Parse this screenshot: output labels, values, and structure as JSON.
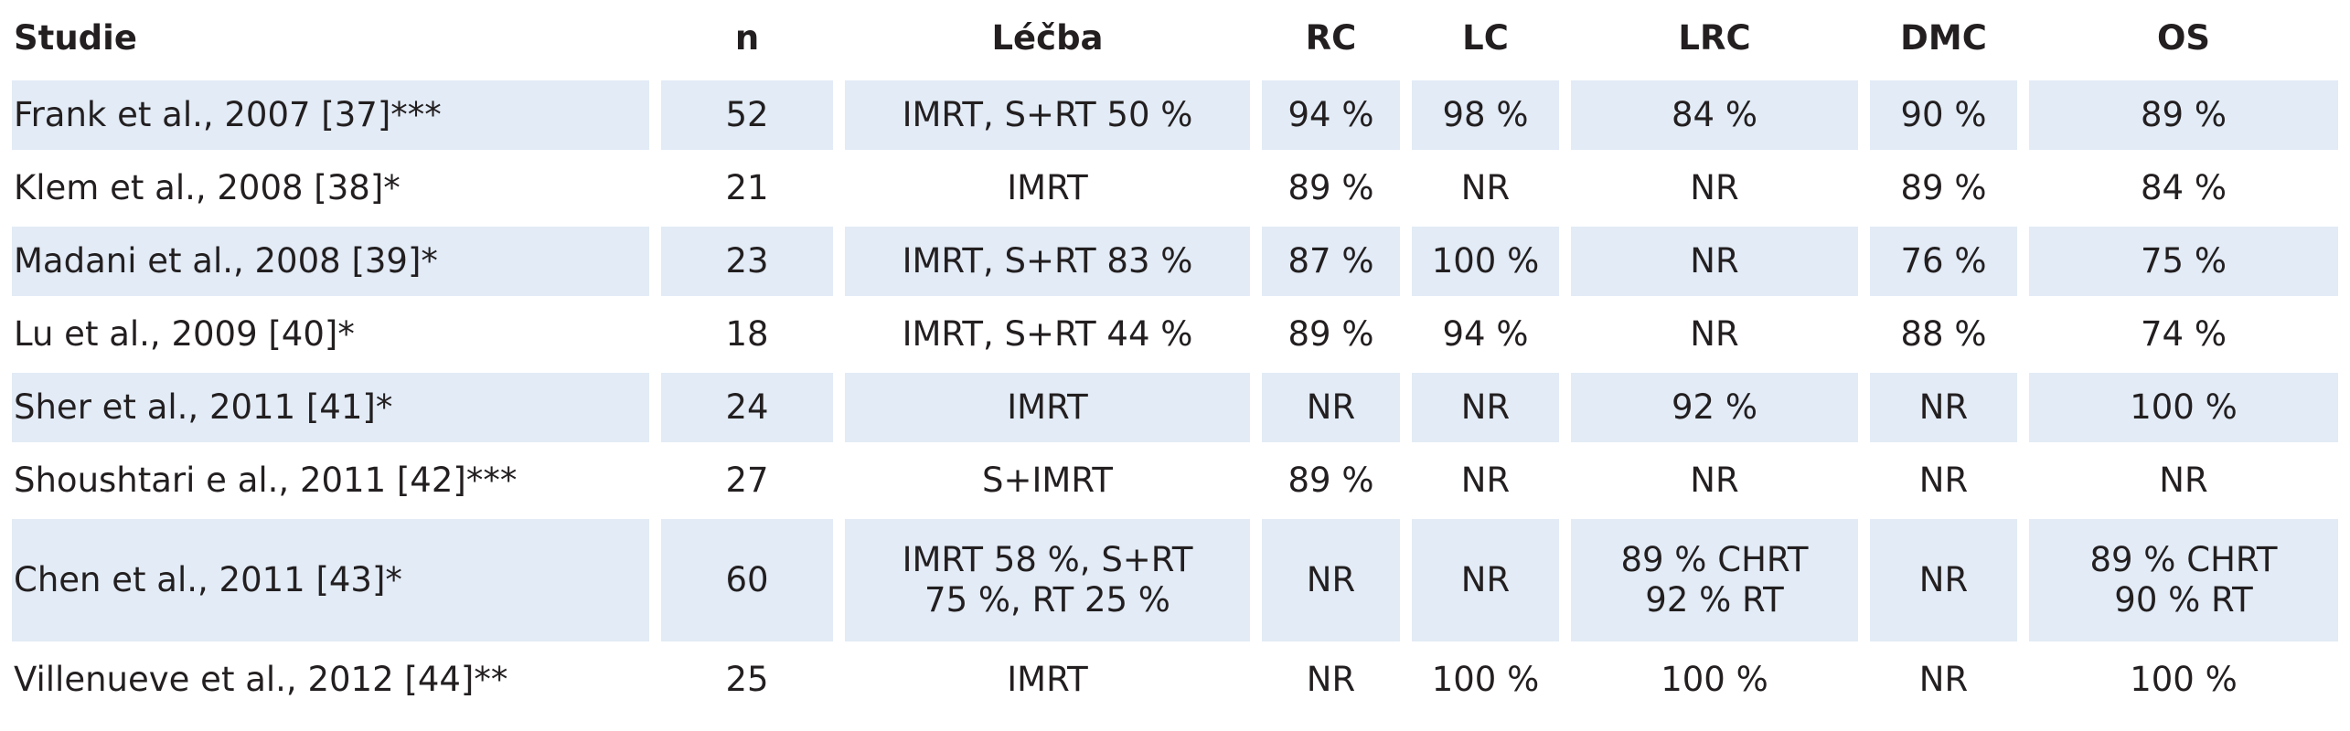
{
  "table": {
    "header": [
      "Studie",
      "n",
      "Léčba",
      "RC",
      "LC",
      "LRC",
      "DMC",
      "OS"
    ],
    "rows": [
      [
        "Frank et al., 2007 [37]***",
        "52",
        "IMRT, S+RT 50 %",
        "94 %",
        "98 %",
        "84 %",
        "90 %",
        "89 %"
      ],
      [
        "Klem et al., 2008 [38]*",
        "21",
        "IMRT",
        "89 %",
        "NR",
        "NR",
        "89 %",
        "84 %"
      ],
      [
        "Madani et al., 2008 [39]*",
        "23",
        "IMRT, S+RT 83 %",
        "87 %",
        "100 %",
        "NR",
        "76 %",
        "75 %"
      ],
      [
        "Lu et al., 2009 [40]*",
        "18",
        "IMRT, S+RT 44 %",
        "89 %",
        "94 %",
        "NR",
        "88 %",
        "74 %"
      ],
      [
        "Sher et al., 2011 [41]*",
        "24",
        "IMRT",
        "NR",
        "NR",
        "92 %",
        "NR",
        "100 %"
      ],
      [
        "Shoushtari e al., 2011 [42]***",
        "27",
        "S+IMRT",
        "89 %",
        "NR",
        "NR",
        "NR",
        "NR"
      ],
      [
        "Chen et al., 2011 [43]*",
        "60",
        [
          "IMRT 58 %, S+RT",
          "75 %, RT 25 %"
        ],
        "NR",
        "NR",
        [
          "89 % CHRT",
          "92 % RT"
        ],
        "NR",
        [
          "89 % CHRT",
          "90 % RT"
        ]
      ],
      [
        "Villenueve et al., 2012 [44]**",
        "25",
        "IMRT",
        "NR",
        "100 %",
        "100 %",
        "NR",
        "100 %"
      ]
    ]
  }
}
